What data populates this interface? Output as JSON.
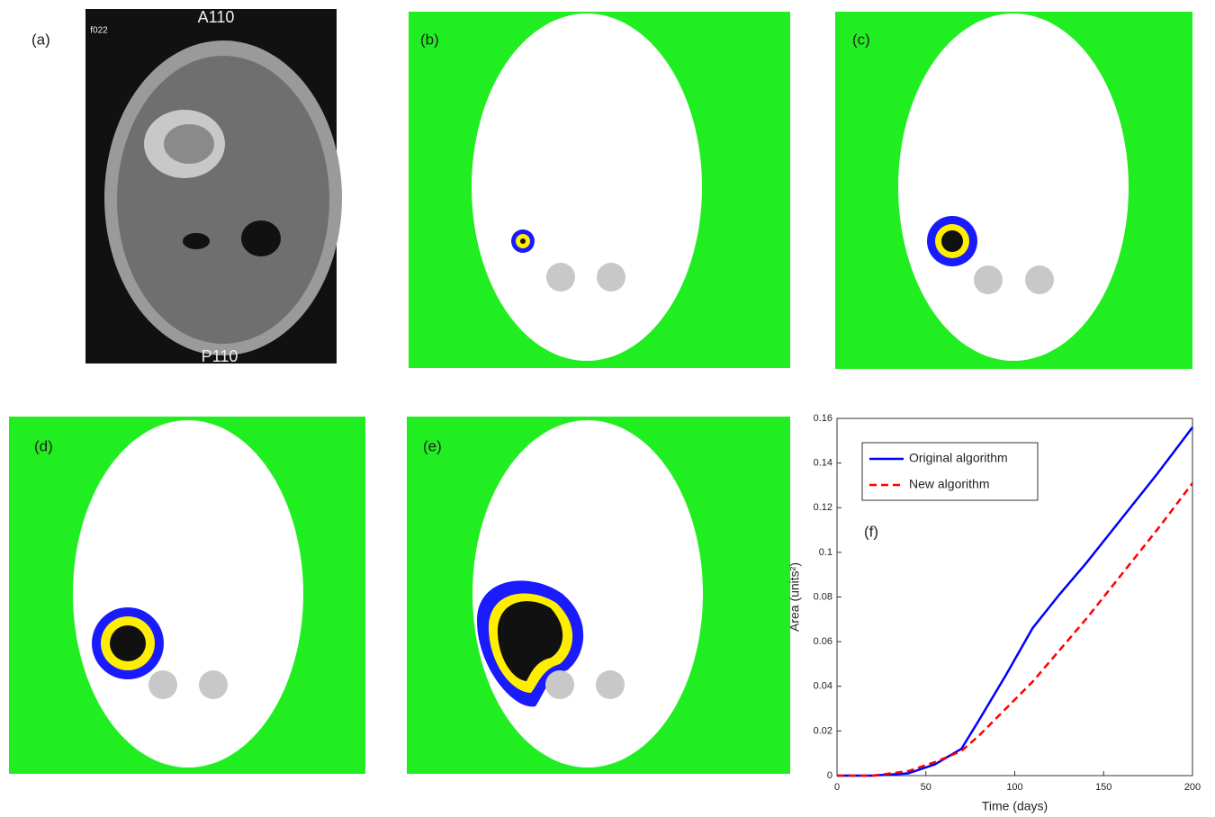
{
  "panel_labels": [
    "(a)",
    "(b)",
    "(c)",
    "(d)",
    "(e)"
  ],
  "scan_labels": {
    "top": "A110",
    "bottom": "P110",
    "corner": "f022"
  },
  "chart_data": {
    "type": "line",
    "annotation": "(f)",
    "x_label": "Time (days)",
    "y_label": "Area (units²)",
    "x": [
      0,
      20,
      40,
      55,
      70,
      80,
      95,
      110,
      125,
      140,
      160,
      180,
      200
    ],
    "series": [
      {
        "name": "Original algorithm",
        "color": "#0000ff",
        "dash": "solid",
        "values": [
          0,
          0,
          0.001,
          0.005,
          0.012,
          0.025,
          0.045,
          0.066,
          0.081,
          0.095,
          0.115,
          0.135,
          0.156
        ]
      },
      {
        "name": "New algorithm",
        "color": "#ff0000",
        "dash": "dashed",
        "values": [
          0,
          0,
          0.002,
          0.006,
          0.011,
          0.018,
          0.03,
          0.042,
          0.056,
          0.07,
          0.09,
          0.11,
          0.131
        ]
      }
    ],
    "xlim": [
      0,
      200
    ],
    "xticks": [
      0,
      50,
      100,
      150,
      200
    ],
    "ylim": [
      0,
      0.16
    ],
    "yticks": [
      0,
      0.02,
      0.04,
      0.06,
      0.08,
      0.1,
      0.12,
      0.14,
      0.16
    ],
    "legend": "upper left",
    "grid": false
  }
}
